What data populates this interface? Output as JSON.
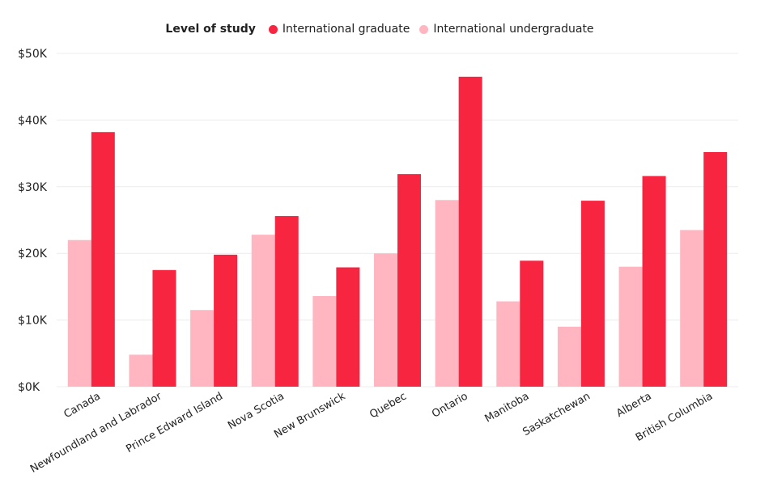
{
  "chart_data": {
    "type": "bar",
    "legend_title": "Level of study",
    "legend_position": "top-center",
    "categories": [
      "Canada",
      "Newfoundland and Labrador",
      "Prince Edward Island",
      "Nova Scotia",
      "New Brunswick",
      "Quebec",
      "Ontario",
      "Manitoba",
      "Saskatchewan",
      "Alberta",
      "British Columbia"
    ],
    "series": [
      {
        "name": "International undergraduate",
        "color": "#ffb6c1",
        "values": [
          22000,
          4800,
          11500,
          22800,
          13600,
          20000,
          28000,
          12800,
          9000,
          18000,
          23500
        ]
      },
      {
        "name": "International graduate",
        "color": "#f7253f",
        "values": [
          38200,
          17500,
          19800,
          25600,
          17900,
          31900,
          46500,
          18900,
          27900,
          31600,
          35200
        ]
      }
    ],
    "y_ticks": [
      "$0K",
      "$10K",
      "$20K",
      "$30K",
      "$40K",
      "$50K"
    ],
    "ylim": [
      0,
      50000
    ],
    "grid": true
  }
}
